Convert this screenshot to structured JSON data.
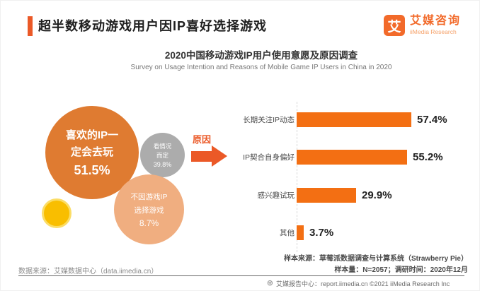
{
  "colors": {
    "accent": "#EB5927",
    "logo_orange": "#F26A2A",
    "bar_orange": "#F36F13",
    "bubble_big": "#DF7B31",
    "bubble_gray": "#ACACAC",
    "bubble_peach": "#F0AE80",
    "dot_yellow": "#F9BE00"
  },
  "header": {
    "title": "超半数移动游戏用户因IP喜好选择游戏",
    "logo": {
      "mark": "艾",
      "name_cn": "艾媒咨询",
      "name_en": "iiMedia Research"
    }
  },
  "chart_header": {
    "title_cn": "2020中国移动游戏IP用户使用意愿及原因调查",
    "title_en": "Survey on Usage Intention and Reasons of Mobile Game IP Users in China in 2020"
  },
  "arrow_label": "原因",
  "chart_data": [
    {
      "type": "pie",
      "subtype": "bubble",
      "title": "移动游戏IP用户使用意愿",
      "categories": [
        "喜欢的IP一定会去玩",
        "看情况而定",
        "不因游戏IP选择游戏"
      ],
      "values": [
        51.5,
        39.8,
        8.7
      ],
      "unit": "%",
      "colors": [
        "#DF7B31",
        "#ACACAC",
        "#F0AE80"
      ]
    },
    {
      "type": "bar",
      "orientation": "horizontal",
      "title": "原因",
      "categories": [
        "长期关注IP动态",
        "IP契合自身偏好",
        "感兴趣试玩",
        "其他"
      ],
      "values": [
        57.4,
        55.2,
        29.9,
        3.7
      ],
      "value_labels": [
        "57.4%",
        "55.2%",
        "29.9%",
        "3.7%"
      ],
      "xlim": [
        0,
        100
      ],
      "unit": "%",
      "bar_color": "#F36F13"
    }
  ],
  "bubbles": {
    "big": {
      "line1": "喜欢的IP一",
      "line2": "定会去玩",
      "value": "51.5%"
    },
    "gray": {
      "line1": "看情况",
      "line2": "而定",
      "value": "39.8%"
    },
    "peach": {
      "line1": "不因游戏IP",
      "line2": "选择游戏",
      "value": "8.7%"
    }
  },
  "footnotes": {
    "sample_source": "样本来源：草莓派数据调查与计算系统（Strawberry Pie）",
    "sample_info": "样本量：N=2057；调研时间：2020年12月",
    "data_source": "数据来源：艾媒数据中心（data.iimedia.cn）",
    "footer": "艾媒报告中心：report.iimedia.cn ©2021  iiMedia Research  Inc",
    "globe_glyph": "⊕"
  }
}
